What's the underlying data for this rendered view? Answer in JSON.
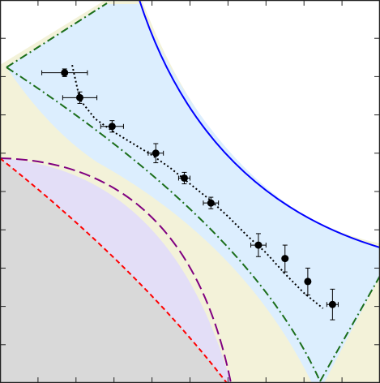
{
  "chart_data": {
    "type": "scatter",
    "title": "",
    "xlabel": "",
    "ylabel": "",
    "xlim": [
      0,
      10
    ],
    "ylim": [
      0,
      10
    ],
    "grid": false,
    "ticks": {
      "x": [
        0,
        1,
        2,
        3,
        4,
        5,
        6,
        7,
        8,
        9,
        10
      ],
      "y": [
        0,
        1,
        2,
        3,
        4,
        5,
        6,
        7,
        8,
        9,
        10
      ]
    },
    "series": [
      {
        "kind": "points-with-error-bars",
        "x": [
          1.7,
          2.1,
          2.95,
          4.1,
          4.85,
          5.55,
          6.8,
          7.5,
          8.1,
          8.75
        ],
        "y": [
          8.1,
          7.45,
          6.7,
          6.0,
          5.35,
          4.7,
          3.6,
          3.25,
          2.65,
          2.05
        ],
        "xerr": [
          0.6,
          0.45,
          0.3,
          0.2,
          0.15,
          0.2,
          0.2,
          0.05,
          0.05,
          0.15
        ],
        "yerr": [
          0.1,
          0.15,
          0.15,
          0.25,
          0.15,
          0.15,
          0.3,
          0.35,
          0.35,
          0.4
        ],
        "color": "#000000"
      },
      {
        "kind": "fit-curve",
        "style": "dotted",
        "color": "#000000",
        "x": [
          1.9,
          2.1,
          2.5,
          3.0,
          3.5,
          4.0,
          4.5,
          5.0,
          5.5,
          6.0,
          6.5,
          7.0,
          7.5,
          8.0,
          8.5
        ],
        "y": [
          8.3,
          7.4,
          6.9,
          6.55,
          6.25,
          5.95,
          5.6,
          5.2,
          4.8,
          4.35,
          3.85,
          3.4,
          2.85,
          2.35,
          1.95
        ]
      }
    ],
    "regions": [
      {
        "name": "gray",
        "fill": "#d9d9d9"
      },
      {
        "name": "lavender",
        "fill": "#e3def7"
      },
      {
        "name": "beige",
        "fill": "#f3f2d9"
      },
      {
        "name": "lightblue",
        "fill": "#dceefe"
      }
    ],
    "boundaries": [
      {
        "kind": "solid-arc",
        "color": "#0000ff"
      },
      {
        "kind": "dash-dot",
        "color": "#1b6e1b"
      },
      {
        "kind": "dashed-purple",
        "color": "#800080"
      },
      {
        "kind": "dashed-red",
        "color": "#ff0000"
      }
    ]
  }
}
